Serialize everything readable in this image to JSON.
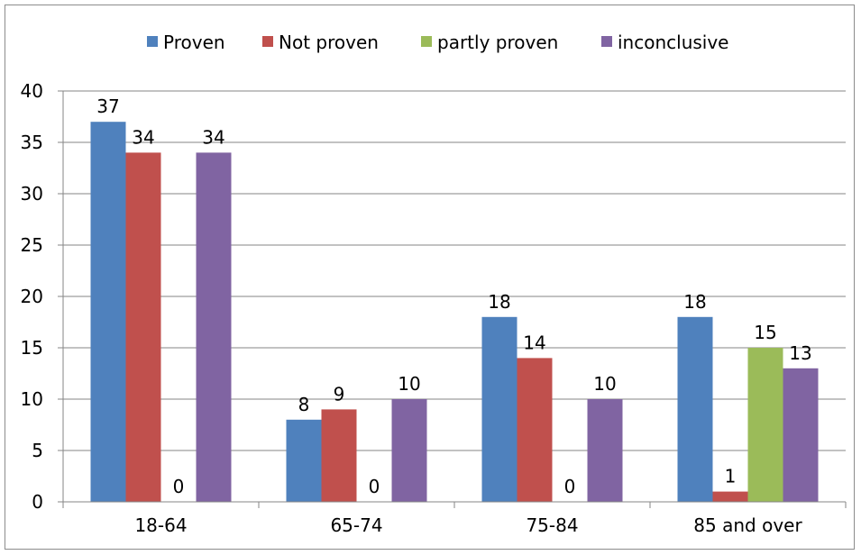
{
  "chart_data": {
    "type": "bar",
    "categories": [
      "18-64",
      "65-74",
      "75-84",
      "85 and over"
    ],
    "series": [
      {
        "name": "Proven",
        "color": "#4f81bd",
        "values": [
          37,
          8,
          18,
          18
        ]
      },
      {
        "name": "Not proven",
        "color": "#c0504d",
        "values": [
          34,
          9,
          14,
          1
        ]
      },
      {
        "name": "partly proven",
        "color": "#9bbb59",
        "values": [
          0,
          0,
          0,
          15
        ]
      },
      {
        "name": "inconclusive",
        "color": "#8064a2",
        "values": [
          34,
          10,
          10,
          13
        ]
      }
    ],
    "title": "",
    "xlabel": "",
    "ylabel": "",
    "ylim": [
      0,
      40
    ],
    "yticks": [
      0,
      5,
      10,
      15,
      20,
      25,
      30,
      35,
      40
    ],
    "grid": true,
    "legend_position": "top",
    "data_labels": true
  }
}
